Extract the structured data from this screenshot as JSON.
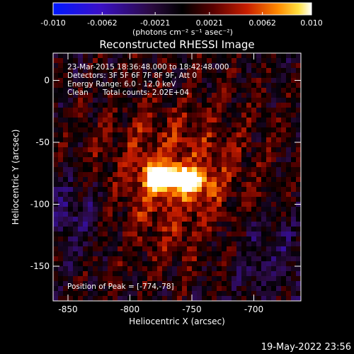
{
  "colorbar": {
    "tick_labels": [
      "-0.010",
      "-0.0062",
      "-0.0021",
      "0.0021",
      "0.0062",
      "0.010"
    ],
    "tick_values": [
      -0.01,
      -0.0062,
      -0.0021,
      0.0021,
      0.0062,
      0.01
    ],
    "range": [
      -0.01,
      0.01
    ],
    "units_label": "(photons cm⁻² s⁻¹ asec⁻²)"
  },
  "chart_data": {
    "type": "heatmap",
    "title": "Reconstructed RHESSI Image",
    "xlabel": "Heliocentric X (arcsec)",
    "ylabel": "Heliocentric Y (arcsec)",
    "xlim": [
      -862,
      -662
    ],
    "ylim": [
      -178,
      22
    ],
    "xticks": [
      -850,
      -800,
      -750,
      -700
    ],
    "yticks": [
      0,
      -50,
      -100,
      -150
    ],
    "colormap": "hot-cold (blue-purple negative, red-yellow-white positive)",
    "sources": [
      {
        "x": -774,
        "y": -78,
        "peak": 0.01
      },
      {
        "x": -750,
        "y": -82,
        "peak": 0.0075
      }
    ],
    "annotations": {
      "time_range": "23-Mar-2015 18:36:48.000 to 18:42:48.000",
      "detectors": "Detectors: 3F 5F 6F 7F 8F 9F, Att 0",
      "energy_range": "Energy Range: 6.0 - 12.0 keV",
      "method": "Clean",
      "total_counts": "Total counts: 2.02E+04",
      "peak_position": "Position of Peak = [-774,-78]"
    }
  },
  "timestamp": "19-May-2022 23:56"
}
